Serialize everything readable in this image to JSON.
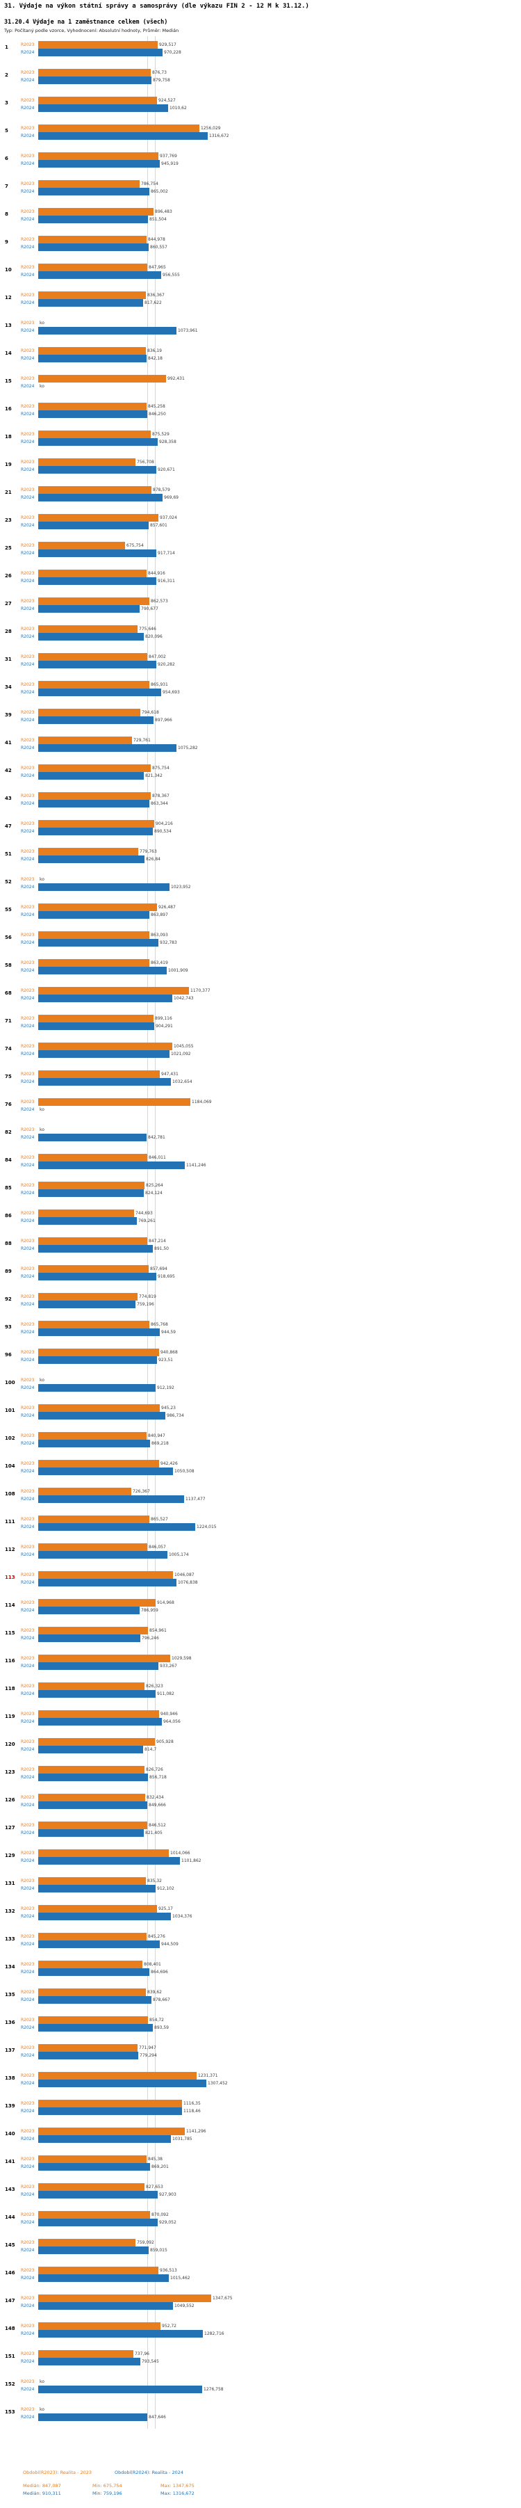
{
  "header": {
    "title1": "31. Výdaje na výkon státní správy a samosprávy (dle výkazu FIN 2 - 12 M k 31.12.)",
    "title2": "31.20.4 Výdaje na 1 zaměstnance celkem (všech)",
    "subtitle": "Typ: Počítaný podle vzorce, Vyhodnocení: Absolutní hodnoty, Průměr: Medián"
  },
  "colors": {
    "r2023": "#E87D1E",
    "r2024": "#2272B4",
    "highlight_row": "#CC0000",
    "median_gridline": "#D6D6D6"
  },
  "legend": {
    "r2023_label": "Období(R2023): Realita - 2023",
    "r2024_label": "Období(R2024): Realita - 2024",
    "stat_labels": {
      "median": "Medián",
      "min": "Min",
      "max": "Max"
    }
  },
  "chart_data": {
    "type": "bar",
    "orientation": "horizontal",
    "xlim": [
      0,
      1400
    ],
    "grid": "median-lines-only",
    "series": [
      "R2023",
      "R2024"
    ],
    "no_data_label": "ko",
    "series_labels": {
      "r2023": "R2023",
      "r2024": "R2024"
    },
    "stats": {
      "r2023": {
        "median": "847,087",
        "min": "675,754",
        "max": "1347,675"
      },
      "r2024": {
        "median": "910,311",
        "min": "759,196",
        "max": "1316,672"
      }
    },
    "rows": [
      {
        "id": "1",
        "r2023": "929,517",
        "r2024": "970,228"
      },
      {
        "id": "2",
        "r2023": "876,73",
        "r2024": "879,758"
      },
      {
        "id": "3",
        "r2023": "924,527",
        "r2024": "1010,62"
      },
      {
        "id": "5",
        "r2023": "1256,029",
        "r2024": "1316,672"
      },
      {
        "id": "6",
        "r2023": "937,769",
        "r2024": "945,919"
      },
      {
        "id": "7",
        "r2023": "786,754",
        "r2024": "865,002"
      },
      {
        "id": "8",
        "r2023": "896,483",
        "r2024": "851,504"
      },
      {
        "id": "9",
        "r2023": "844,978",
        "r2024": "860,557"
      },
      {
        "id": "10",
        "r2023": "847,965",
        "r2024": "956,555"
      },
      {
        "id": "12",
        "r2023": "836,367",
        "r2024": "817,622"
      },
      {
        "id": "13",
        "r2023": null,
        "r2024": "1073,961"
      },
      {
        "id": "14",
        "r2023": "836,19",
        "r2024": "842,18"
      },
      {
        "id": "15",
        "r2023": "992,431",
        "r2024": null
      },
      {
        "id": "16",
        "r2023": "845,258",
        "r2024": "846,250"
      },
      {
        "id": "18",
        "r2023": "875,529",
        "r2024": "928,358"
      },
      {
        "id": "19",
        "r2023": "756,708",
        "r2024": "920,671"
      },
      {
        "id": "21",
        "r2023": "878,579",
        "r2024": "969,69"
      },
      {
        "id": "23",
        "r2023": "937,024",
        "r2024": "857,601"
      },
      {
        "id": "25",
        "r2023": "675,754",
        "r2024": "917,714"
      },
      {
        "id": "26",
        "r2023": "844,916",
        "r2024": "916,311"
      },
      {
        "id": "27",
        "r2023": "862,573",
        "r2024": "790,677"
      },
      {
        "id": "28",
        "r2023": "775,646",
        "r2024": "820,096"
      },
      {
        "id": "31",
        "r2023": "847,002",
        "r2024": "920,282"
      },
      {
        "id": "34",
        "r2023": "865,931",
        "r2024": "954,693"
      },
      {
        "id": "39",
        "r2023": "794,618",
        "r2024": "897,966"
      },
      {
        "id": "41",
        "r2023": "729,761",
        "r2024": "1075,282"
      },
      {
        "id": "42",
        "r2023": "875,754",
        "r2024": "821,342"
      },
      {
        "id": "43",
        "r2023": "878,367",
        "r2024": "863,344"
      },
      {
        "id": "47",
        "r2023": "904,216",
        "r2024": "890,534"
      },
      {
        "id": "51",
        "r2023": "779,763",
        "r2024": "826,84"
      },
      {
        "id": "52",
        "r2023": null,
        "r2024": "1023,952"
      },
      {
        "id": "55",
        "r2023": "926,487",
        "r2024": "863,897"
      },
      {
        "id": "56",
        "r2023": "863,093",
        "r2024": "932,783"
      },
      {
        "id": "58",
        "r2023": "863,419",
        "r2024": "1001,909"
      },
      {
        "id": "68",
        "r2023": "1170,377",
        "r2024": "1042,743"
      },
      {
        "id": "71",
        "r2023": "899,116",
        "r2024": "904,291"
      },
      {
        "id": "74",
        "r2023": "1045,055",
        "r2024": "1021,092"
      },
      {
        "id": "75",
        "r2023": "947,431",
        "r2024": "1032,654"
      },
      {
        "id": "76",
        "r2023": "1184,069",
        "r2024": null
      },
      {
        "id": "82",
        "r2023": null,
        "r2024": "842,781"
      },
      {
        "id": "84",
        "r2023": "846,011",
        "r2024": "1141,246"
      },
      {
        "id": "85",
        "r2023": "825,264",
        "r2024": "824,124"
      },
      {
        "id": "86",
        "r2023": "744,693",
        "r2024": "769,261"
      },
      {
        "id": "88",
        "r2023": "847,214",
        "r2024": "891,50"
      },
      {
        "id": "89",
        "r2023": "857,694",
        "r2024": "918,695"
      },
      {
        "id": "92",
        "r2023": "774,819",
        "r2024": "759,196"
      },
      {
        "id": "93",
        "r2023": "865,768",
        "r2024": "944,59"
      },
      {
        "id": "96",
        "r2023": "940,868",
        "r2024": "923,51"
      },
      {
        "id": "100",
        "r2023": null,
        "r2024": "912,192"
      },
      {
        "id": "101",
        "r2023": "945,23",
        "r2024": "986,734"
      },
      {
        "id": "102",
        "r2023": "840,947",
        "r2024": "869,218"
      },
      {
        "id": "104",
        "r2023": "942,426",
        "r2024": "1050,508"
      },
      {
        "id": "108",
        "r2023": "726,367",
        "r2024": "1137,477"
      },
      {
        "id": "111",
        "r2023": "865,527",
        "r2024": "1224,015"
      },
      {
        "id": "112",
        "r2023": "846,057",
        "r2024": "1005,174"
      },
      {
        "id": "113",
        "r2023": "1046,087",
        "r2024": "1076,838",
        "highlight": true
      },
      {
        "id": "114",
        "r2023": "914,968",
        "r2024": "786,959"
      },
      {
        "id": "115",
        "r2023": "854,961",
        "r2024": "796,246"
      },
      {
        "id": "116",
        "r2023": "1029,598",
        "r2024": "933,267"
      },
      {
        "id": "118",
        "r2023": "826,323",
        "r2024": "911,082"
      },
      {
        "id": "119",
        "r2023": "940,946",
        "r2024": "964,056"
      },
      {
        "id": "120",
        "r2023": "905,928",
        "r2024": "814,7"
      },
      {
        "id": "123",
        "r2023": "826,726",
        "r2024": "856,718"
      },
      {
        "id": "126",
        "r2023": "832,434",
        "r2024": "849,666"
      },
      {
        "id": "127",
        "r2023": "846,512",
        "r2024": "821,405"
      },
      {
        "id": "129",
        "r2023": "1014,066",
        "r2024": "1101,862"
      },
      {
        "id": "131",
        "r2023": "835,32",
        "r2024": "912,102"
      },
      {
        "id": "132",
        "r2023": "925,17",
        "r2024": "1034,376"
      },
      {
        "id": "133",
        "r2023": "845,276",
        "r2024": "944,509"
      },
      {
        "id": "134",
        "r2023": "808,401",
        "r2024": "864,696"
      },
      {
        "id": "135",
        "r2023": "839,62",
        "r2024": "878,667"
      },
      {
        "id": "136",
        "r2023": "854,72",
        "r2024": "893,59"
      },
      {
        "id": "137",
        "r2023": "771,947",
        "r2024": "779,294"
      },
      {
        "id": "138",
        "r2023": "1231,371",
        "r2024": "1307,452"
      },
      {
        "id": "139",
        "r2023": "1116,35",
        "r2024": "1118,46"
      },
      {
        "id": "140",
        "r2023": "1141,296",
        "r2024": "1031,785"
      },
      {
        "id": "141",
        "r2023": "845,38",
        "r2024": "869,201"
      },
      {
        "id": "143",
        "r2023": "827,653",
        "r2024": "927,903"
      },
      {
        "id": "144",
        "r2023": "870,092",
        "r2024": "929,052"
      },
      {
        "id": "145",
        "r2023": "759,092",
        "r2024": "859,015"
      },
      {
        "id": "146",
        "r2023": "936,513",
        "r2024": "1015,462"
      },
      {
        "id": "147",
        "r2023": "1347,675",
        "r2024": "1049,552"
      },
      {
        "id": "148",
        "r2023": "952,72",
        "r2024": "1282,716"
      },
      {
        "id": "151",
        "r2023": "737,96",
        "r2024": "793,545"
      },
      {
        "id": "152",
        "r2023": null,
        "r2024": "1276,758"
      },
      {
        "id": "153",
        "r2023": null,
        "r2024": "847,646"
      }
    ]
  }
}
